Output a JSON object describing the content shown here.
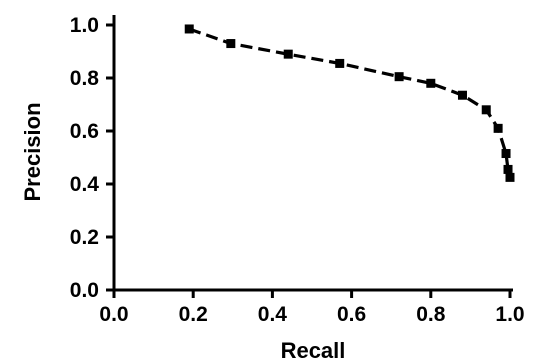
{
  "chart_data": {
    "type": "line",
    "title": "",
    "xlabel": "Recall",
    "ylabel": "Precision",
    "xlim": [
      0,
      1
    ],
    "ylim": [
      0,
      1
    ],
    "grid": false,
    "legend": "none",
    "x_ticks": [
      "0.0",
      "0.2",
      "0.4",
      "0.6",
      "0.8",
      "1.0"
    ],
    "y_ticks": [
      "0.0",
      "0.2",
      "0.4",
      "0.6",
      "0.8",
      "1.0"
    ],
    "series": [
      {
        "line_style": "dashed",
        "marker": "square",
        "color": "#000000",
        "points": [
          {
            "x": 0.19,
            "y": 0.985
          },
          {
            "x": 0.295,
            "y": 0.93
          },
          {
            "x": 0.44,
            "y": 0.89
          },
          {
            "x": 0.57,
            "y": 0.855
          },
          {
            "x": 0.72,
            "y": 0.805
          },
          {
            "x": 0.8,
            "y": 0.78
          },
          {
            "x": 0.88,
            "y": 0.735
          },
          {
            "x": 0.94,
            "y": 0.68
          },
          {
            "x": 0.97,
            "y": 0.61
          },
          {
            "x": 0.99,
            "y": 0.515
          },
          {
            "x": 0.995,
            "y": 0.455
          },
          {
            "x": 1.0,
            "y": 0.425
          }
        ]
      }
    ]
  }
}
